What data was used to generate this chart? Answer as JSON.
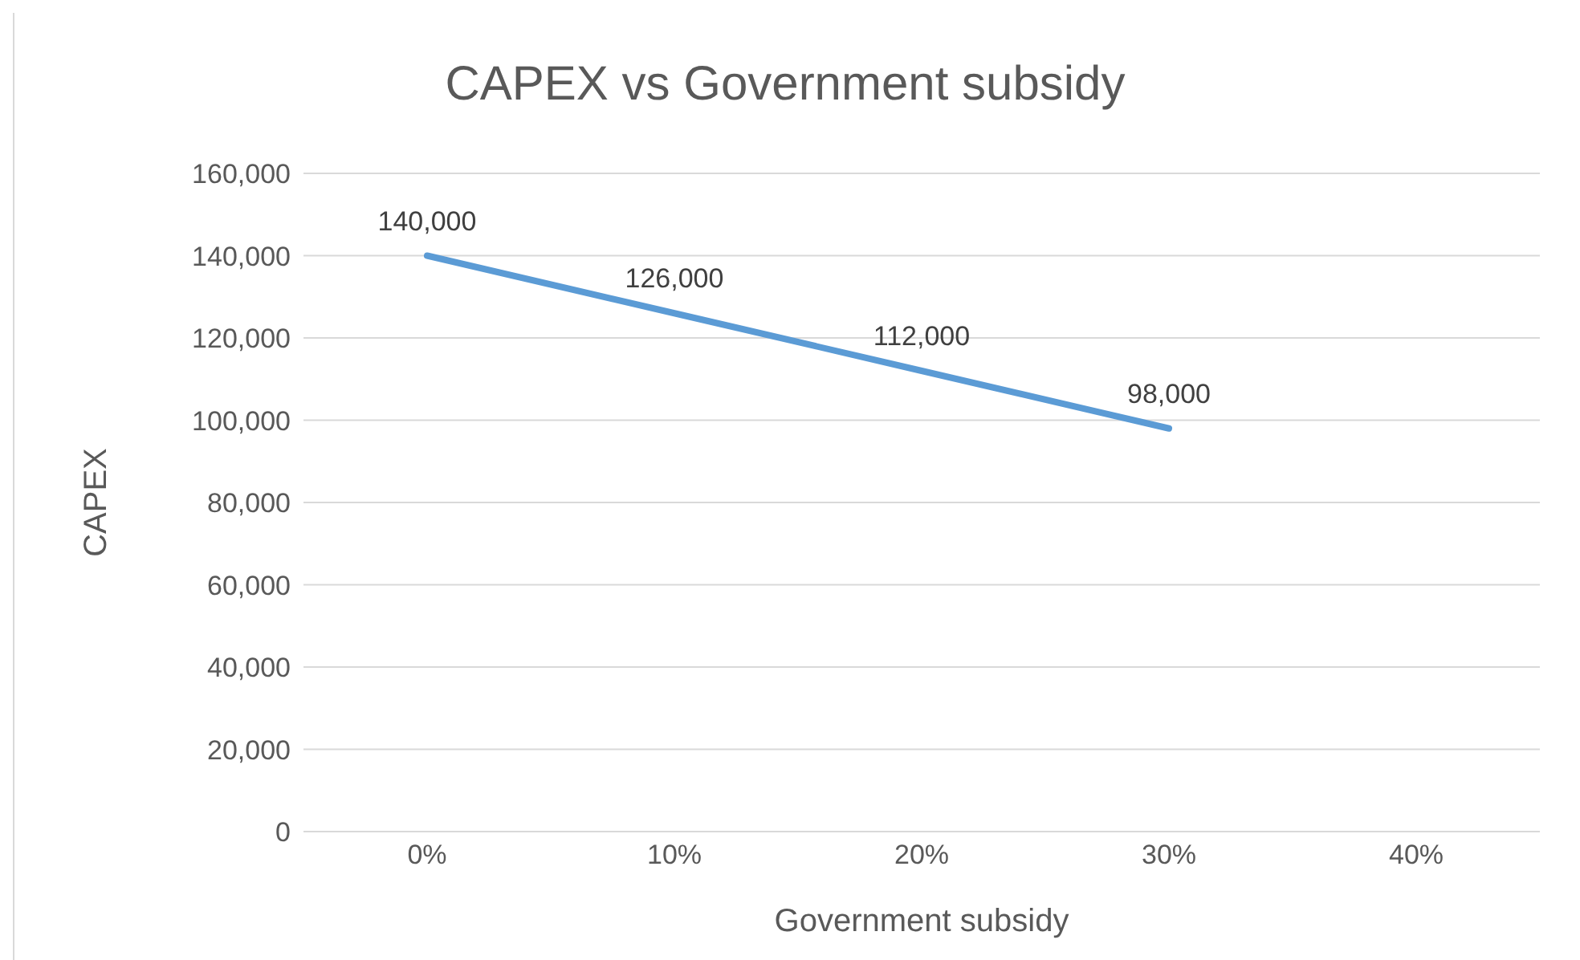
{
  "chart_data": {
    "type": "line",
    "title": "CAPEX vs Government subsidy",
    "xlabel": "Government subsidy",
    "ylabel": "CAPEX",
    "categories": [
      "0%",
      "10%",
      "20%",
      "30%",
      "40%"
    ],
    "series": [
      {
        "color": "#5b9bd5",
        "values": [
          140000,
          126000,
          112000,
          98000,
          null
        ],
        "value_labels": [
          "140,000",
          "126,000",
          "112,000",
          "98,000",
          null
        ]
      }
    ],
    "ylim": [
      0,
      160000
    ],
    "yticks": [
      0,
      {
        "value": 20000,
        "label": "20,000"
      },
      {
        "value": 40000,
        "label": "40,000"
      },
      {
        "value": 60000,
        "label": "60,000"
      },
      {
        "value": 80000,
        "label": "80,000"
      },
      {
        "value": 100000,
        "label": "100,000"
      },
      {
        "value": 120000,
        "label": "120,000"
      },
      {
        "value": 140000,
        "label": "140,000"
      },
      {
        "value": 160000,
        "label": "160,000"
      }
    ],
    "grid": "y",
    "legend": false,
    "marker": "none",
    "line_style": "solid"
  }
}
